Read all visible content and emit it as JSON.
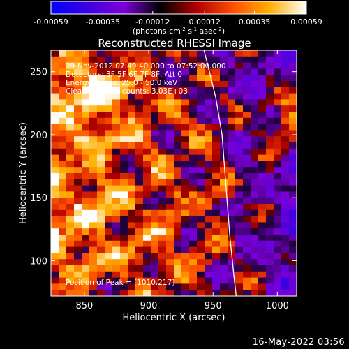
{
  "colorbar": {
    "ticks": [
      "-0.00059",
      "-0.00035",
      "-0.00012",
      "0.00012",
      "0.00035",
      "0.00059"
    ],
    "tick_values": [
      -0.00059,
      -0.00035,
      -0.00012,
      0.00012,
      0.00035,
      0.00059
    ],
    "range": [
      -0.00059,
      0.00059
    ],
    "unit_main": "(photons cm",
    "unit_exp1": "-2",
    "unit_mid": " s",
    "unit_exp2": "-1",
    "unit_tail": " asec",
    "unit_exp3": "-2",
    "unit_close": ")",
    "colors": [
      "#0000ff",
      "#3c00e0",
      "#7c00d8",
      "#000000",
      "#b00000",
      "#ff5000",
      "#ffb000",
      "#ffffff"
    ]
  },
  "chart_data": {
    "type": "heatmap",
    "title": "Reconstructed RHESSI Image",
    "xlabel": "Heliocentric X (arcsec)",
    "ylabel": "Heliocentric Y (arcsec)",
    "xlim": [
      824,
      1015
    ],
    "ylim": [
      72,
      267
    ],
    "xticks": [
      850,
      900,
      950,
      1000
    ],
    "yticks": [
      100,
      150,
      200,
      250
    ],
    "grid": "32x40",
    "limb": [
      [
        943,
        267
      ],
      [
        952,
        230
      ],
      [
        957,
        200
      ],
      [
        960,
        160
      ],
      [
        963,
        120
      ],
      [
        966,
        90
      ],
      [
        968,
        72
      ]
    ],
    "peak": {
      "x": 1010,
      "y": 217
    }
  },
  "annotations": {
    "time_range": "19-Nov-2012 07:49:40.000 to 07:52:00.000",
    "detectors": "Detectors: 3F 5F 6F 7F 8F, Att 0",
    "energy": "Energy Range: 25.0 - 50.0 keV",
    "clean": "Clean",
    "counts": "Total counts: 3.03E+03",
    "peak": "Position of Peak = [1010,217]"
  },
  "timestamp": "16-May-2022 03:56"
}
